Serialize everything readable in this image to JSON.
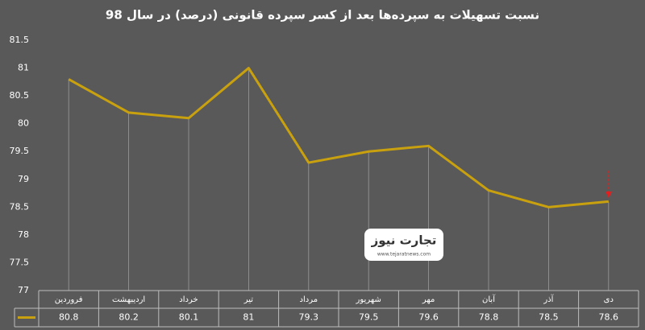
{
  "chart_data": {
    "type": "line",
    "title": "نسبت تسهیلات به سپرده‌ها بعد از کسر سپرده قانونی (درصد) در سال 98",
    "categories": [
      "فروردین",
      "اردیبهشت",
      "خرداد",
      "تیر",
      "مرداد",
      "شهریور",
      "مهر",
      "آبان",
      "آذر",
      "دی"
    ],
    "values": [
      80.8,
      80.2,
      80.1,
      81,
      79.3,
      79.5,
      79.6,
      78.8,
      78.5,
      78.6
    ],
    "color": "#c9a10e",
    "ylim": [
      77,
      81.5
    ],
    "yticks": [
      77,
      77.5,
      78,
      78.5,
      79,
      79.5,
      80,
      80.5,
      81,
      81.5
    ],
    "data_table": true
  },
  "watermark": {
    "brand": "تجارت نیوز",
    "url": "www.tejaratnews.com"
  }
}
